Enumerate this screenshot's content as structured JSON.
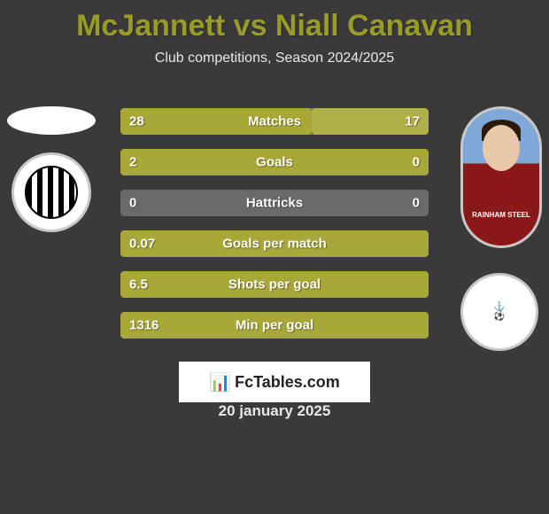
{
  "title": "McJannett vs Niall Canavan",
  "subtitle": "Club competitions, Season 2024/2025",
  "date": "20 january 2025",
  "branding": "FcTables.com",
  "jersey_sponsor": "RAINHAM STEEL",
  "colors": {
    "title_color": "#9a9a28",
    "subtitle_color": "#e8e8e8",
    "background": "#3a3a3a",
    "bar_left": "#a8a838",
    "bar_right": "#b0b048",
    "bar_track": "#6a6a6a",
    "stat_text": "#ffffff"
  },
  "layout": {
    "stat_row_height": 30,
    "stat_row_gap": 16,
    "stats_width": 348
  },
  "stats": [
    {
      "label": "Matches",
      "left_val": "28",
      "right_val": "17",
      "left_pct": 62,
      "right_pct": 38
    },
    {
      "label": "Goals",
      "left_val": "2",
      "right_val": "0",
      "left_pct": 100,
      "right_pct": 0
    },
    {
      "label": "Hattricks",
      "left_val": "0",
      "right_val": "0",
      "left_pct": 0,
      "right_pct": 0
    },
    {
      "label": "Goals per match",
      "left_val": "0.07",
      "right_val": "",
      "left_pct": 100,
      "right_pct": 0
    },
    {
      "label": "Shots per goal",
      "left_val": "6.5",
      "right_val": "",
      "left_pct": 100,
      "right_pct": 0
    },
    {
      "label": "Min per goal",
      "left_val": "1316",
      "right_val": "",
      "left_pct": 100,
      "right_pct": 0
    }
  ]
}
